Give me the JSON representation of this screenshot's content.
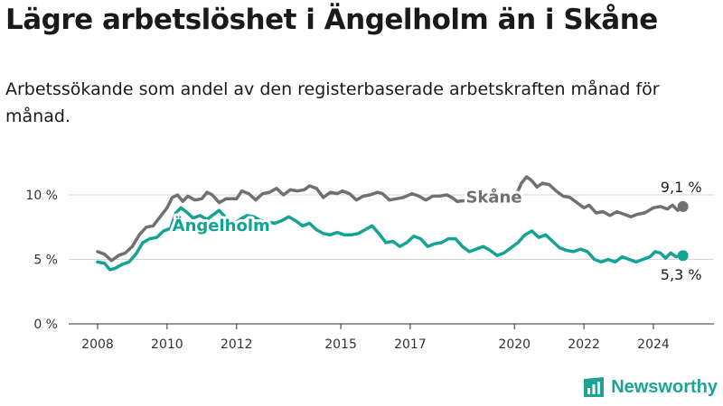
{
  "header": {
    "title": "Lägre arbetslöshet i Ängelholm än i Skåne",
    "subtitle": "Arbetssökande som andel av den registerbaserade arbetskraften månad för månad."
  },
  "brand": {
    "name": "Newsworthy",
    "icon": "bar-chart-icon",
    "color": "#1aa396"
  },
  "chart_data": {
    "type": "line",
    "title": "Lägre arbetslöshet i Ängelholm än i Skåne",
    "xlabel": "",
    "ylabel": "",
    "xlim": [
      2007.5,
      2025.8
    ],
    "ylim": [
      0,
      12.5
    ],
    "x_ticks": [
      2008,
      2010,
      2012,
      2015,
      2017,
      2020,
      2022,
      2024
    ],
    "x_tick_labels": [
      "2008",
      "2010",
      "2012",
      "2015",
      "2017",
      "2020",
      "2022",
      "2024"
    ],
    "y_ticks": [
      0,
      5,
      10
    ],
    "y_tick_labels": [
      "0 %",
      "5 %",
      "10 %"
    ],
    "grid": true,
    "series": [
      {
        "name": "Skåne",
        "color": "#707070",
        "label": "Skåne",
        "label_at": [
          2018.6,
          9.4
        ],
        "end_label": "9,1 %",
        "points": [
          [
            2008.0,
            5.6
          ],
          [
            2008.2,
            5.4
          ],
          [
            2008.4,
            4.9
          ],
          [
            2008.6,
            5.3
          ],
          [
            2008.8,
            5.5
          ],
          [
            2009.0,
            6.0
          ],
          [
            2009.2,
            6.9
          ],
          [
            2009.4,
            7.5
          ],
          [
            2009.6,
            7.6
          ],
          [
            2009.8,
            8.3
          ],
          [
            2010.0,
            9.0
          ],
          [
            2010.15,
            9.8
          ],
          [
            2010.3,
            10.0
          ],
          [
            2010.45,
            9.5
          ],
          [
            2010.6,
            9.9
          ],
          [
            2010.8,
            9.6
          ],
          [
            2011.0,
            9.7
          ],
          [
            2011.15,
            10.2
          ],
          [
            2011.3,
            10.0
          ],
          [
            2011.5,
            9.4
          ],
          [
            2011.7,
            9.7
          ],
          [
            2012.0,
            9.7
          ],
          [
            2012.15,
            10.3
          ],
          [
            2012.35,
            10.1
          ],
          [
            2012.55,
            9.6
          ],
          [
            2012.75,
            10.1
          ],
          [
            2012.95,
            10.2
          ],
          [
            2013.15,
            10.5
          ],
          [
            2013.35,
            10.0
          ],
          [
            2013.55,
            10.4
          ],
          [
            2013.75,
            10.3
          ],
          [
            2013.95,
            10.4
          ],
          [
            2014.1,
            10.7
          ],
          [
            2014.3,
            10.5
          ],
          [
            2014.5,
            9.8
          ],
          [
            2014.7,
            10.2
          ],
          [
            2014.9,
            10.1
          ],
          [
            2015.05,
            10.3
          ],
          [
            2015.25,
            10.1
          ],
          [
            2015.45,
            9.6
          ],
          [
            2015.65,
            9.9
          ],
          [
            2015.85,
            10.0
          ],
          [
            2016.05,
            10.2
          ],
          [
            2016.2,
            10.1
          ],
          [
            2016.4,
            9.6
          ],
          [
            2016.6,
            9.7
          ],
          [
            2016.8,
            9.8
          ],
          [
            2017.05,
            10.1
          ],
          [
            2017.25,
            9.9
          ],
          [
            2017.45,
            9.6
          ],
          [
            2017.65,
            9.9
          ],
          [
            2017.85,
            9.9
          ],
          [
            2018.05,
            10.0
          ],
          [
            2018.2,
            9.8
          ],
          [
            2018.35,
            9.5
          ],
          [
            2019.7,
            9.8
          ],
          [
            2019.85,
            9.7
          ],
          [
            2020.05,
            10.0
          ],
          [
            2020.2,
            10.9
          ],
          [
            2020.35,
            11.4
          ],
          [
            2020.5,
            11.1
          ],
          [
            2020.65,
            10.6
          ],
          [
            2020.8,
            10.9
          ],
          [
            2021.0,
            10.8
          ],
          [
            2021.2,
            10.3
          ],
          [
            2021.4,
            9.9
          ],
          [
            2021.6,
            9.8
          ],
          [
            2021.8,
            9.4
          ],
          [
            2022.0,
            9.0
          ],
          [
            2022.15,
            9.2
          ],
          [
            2022.35,
            8.6
          ],
          [
            2022.55,
            8.7
          ],
          [
            2022.75,
            8.4
          ],
          [
            2022.95,
            8.7
          ],
          [
            2023.15,
            8.5
          ],
          [
            2023.35,
            8.3
          ],
          [
            2023.55,
            8.5
          ],
          [
            2023.75,
            8.6
          ],
          [
            2024.0,
            9.0
          ],
          [
            2024.2,
            9.1
          ],
          [
            2024.4,
            8.9
          ],
          [
            2024.55,
            9.2
          ],
          [
            2024.7,
            8.8
          ],
          [
            2024.85,
            9.1
          ]
        ]
      },
      {
        "name": "Ängelholm",
        "color": "#13a394",
        "label": "Ängelholm",
        "label_at": [
          2010.15,
          7.2
        ],
        "end_label": "5,3 %",
        "points": [
          [
            2008.0,
            4.8
          ],
          [
            2008.2,
            4.7
          ],
          [
            2008.35,
            4.2
          ],
          [
            2008.5,
            4.3
          ],
          [
            2008.7,
            4.6
          ],
          [
            2008.9,
            4.8
          ],
          [
            2009.1,
            5.4
          ],
          [
            2009.3,
            6.3
          ],
          [
            2009.5,
            6.6
          ],
          [
            2009.7,
            6.7
          ],
          [
            2009.9,
            7.2
          ],
          [
            2010.1,
            7.4
          ],
          [
            2010.25,
            8.6
          ],
          [
            2010.4,
            9.0
          ],
          [
            2010.55,
            8.7
          ],
          [
            2010.75,
            8.2
          ],
          [
            2010.95,
            8.4
          ],
          [
            2011.15,
            8.1
          ],
          [
            2011.35,
            8.5
          ],
          [
            2011.5,
            8.8
          ],
          [
            2011.7,
            8.2
          ],
          [
            2011.9,
            7.7
          ],
          [
            2012.1,
            8.1
          ],
          [
            2012.3,
            8.4
          ],
          [
            2012.5,
            8.3
          ],
          [
            2012.7,
            8.0
          ],
          [
            2012.9,
            7.9
          ],
          [
            2013.1,
            7.8
          ],
          [
            2013.3,
            8.0
          ],
          [
            2013.5,
            8.3
          ],
          [
            2013.7,
            8.0
          ],
          [
            2013.9,
            7.6
          ],
          [
            2014.1,
            7.8
          ],
          [
            2014.3,
            7.3
          ],
          [
            2014.5,
            7.0
          ],
          [
            2014.7,
            6.9
          ],
          [
            2014.9,
            7.1
          ],
          [
            2015.1,
            6.9
          ],
          [
            2015.3,
            6.9
          ],
          [
            2015.5,
            7.0
          ],
          [
            2015.7,
            7.3
          ],
          [
            2015.9,
            7.6
          ],
          [
            2016.1,
            7.0
          ],
          [
            2016.3,
            6.3
          ],
          [
            2016.5,
            6.4
          ],
          [
            2016.7,
            6.0
          ],
          [
            2016.9,
            6.3
          ],
          [
            2017.1,
            6.8
          ],
          [
            2017.3,
            6.6
          ],
          [
            2017.5,
            6.0
          ],
          [
            2017.7,
            6.2
          ],
          [
            2017.9,
            6.3
          ],
          [
            2018.1,
            6.6
          ],
          [
            2018.3,
            6.6
          ],
          [
            2018.5,
            6.0
          ],
          [
            2018.7,
            5.6
          ],
          [
            2018.9,
            5.8
          ],
          [
            2019.1,
            6.0
          ],
          [
            2019.3,
            5.7
          ],
          [
            2019.5,
            5.3
          ],
          [
            2019.7,
            5.5
          ],
          [
            2019.9,
            5.9
          ],
          [
            2020.1,
            6.3
          ],
          [
            2020.3,
            6.9
          ],
          [
            2020.5,
            7.2
          ],
          [
            2020.7,
            6.7
          ],
          [
            2020.9,
            6.9
          ],
          [
            2021.1,
            6.4
          ],
          [
            2021.3,
            5.9
          ],
          [
            2021.5,
            5.7
          ],
          [
            2021.7,
            5.6
          ],
          [
            2021.9,
            5.8
          ],
          [
            2022.1,
            5.6
          ],
          [
            2022.3,
            5.0
          ],
          [
            2022.5,
            4.8
          ],
          [
            2022.7,
            5.0
          ],
          [
            2022.9,
            4.8
          ],
          [
            2023.1,
            5.2
          ],
          [
            2023.3,
            5.0
          ],
          [
            2023.5,
            4.8
          ],
          [
            2023.7,
            5.0
          ],
          [
            2023.9,
            5.2
          ],
          [
            2024.05,
            5.6
          ],
          [
            2024.2,
            5.5
          ],
          [
            2024.35,
            5.1
          ],
          [
            2024.5,
            5.5
          ],
          [
            2024.65,
            5.2
          ],
          [
            2024.85,
            5.3
          ]
        ]
      }
    ]
  }
}
